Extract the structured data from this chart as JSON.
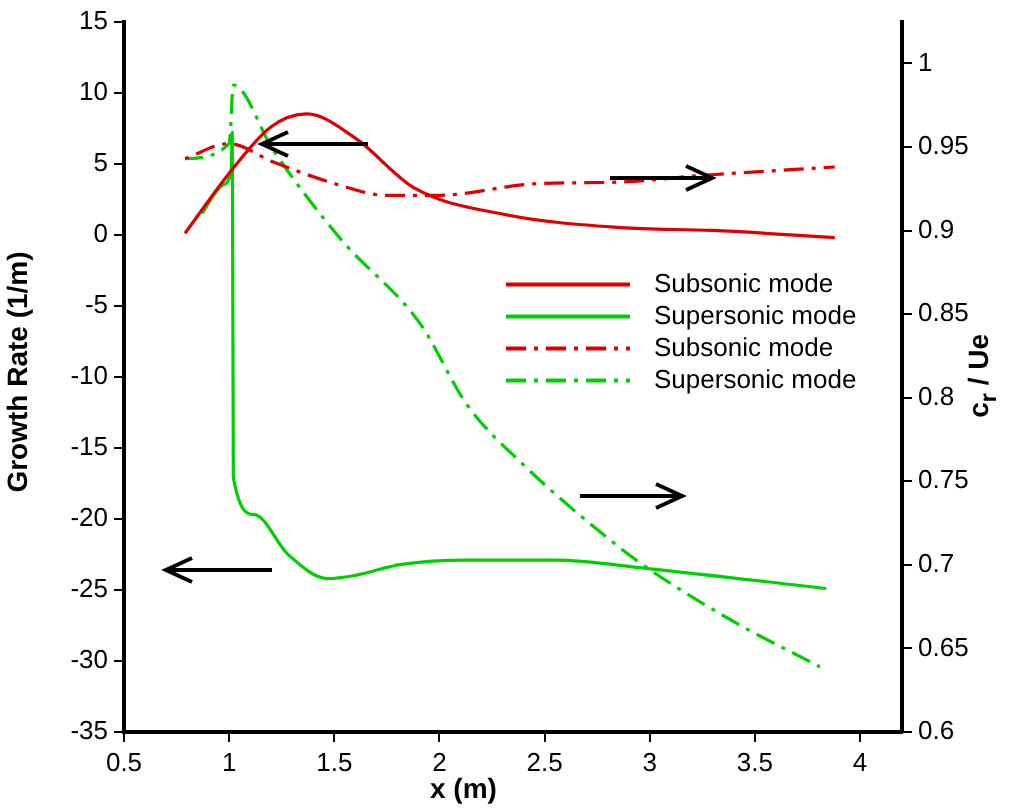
{
  "chart_data": {
    "type": "line",
    "xlabel": "x (m)",
    "ylabel": "Growth Rate (1/m)",
    "y2label": "c$_{r}$ / Ue",
    "xlim": [
      0.5,
      4.2
    ],
    "xticks": [
      0.5,
      1,
      1.5,
      2,
      2.5,
      3,
      3.5,
      4
    ],
    "ylim": [
      -35,
      15
    ],
    "yticks": [
      -35,
      -30,
      -25,
      -20,
      -15,
      -10,
      -5,
      0,
      5,
      10,
      15
    ],
    "y2lim": [
      0.6,
      1.025
    ],
    "y2ticks": [
      0.6,
      0.65,
      0.7,
      0.75,
      0.8,
      0.85,
      0.9,
      0.95,
      1
    ],
    "grid": false,
    "legend": "right",
    "marker": "none",
    "series": [
      {
        "name": "Subsonic mode",
        "color": "#e00000",
        "line_style": "solid",
        "x": [
          0.79,
          1.02,
          1.2,
          1.37,
          1.6,
          1.88,
          2.32,
          2.86,
          3.3,
          3.88
        ],
        "values": [
          0.1,
          4.7,
          7.6,
          8.5,
          6.8,
          3.3,
          1.4,
          0.5,
          0.3,
          -0.2
        ]
      },
      {
        "name": "Supersonic mode",
        "color": "#00d000",
        "line_style": "solid",
        "x": [
          0.87,
          0.97,
          1.01,
          1.015,
          1.02,
          1.12,
          1.28,
          1.47,
          1.59,
          1.82,
          2.13,
          2.55,
          2.99,
          3.84
        ],
        "values": [
          1.5,
          3.5,
          4.6,
          7.2,
          -17.1,
          -19.7,
          -22.5,
          -24.2,
          -24,
          -23.2,
          -22.9,
          -22.9,
          -23.5,
          -24.9
        ]
      },
      {
        "name": "Subsonic mode",
        "color": "#e00000",
        "line_style": "dashdot",
        "axis": "y2",
        "x": [
          0.79,
          1.0,
          1.21,
          1.53,
          1.75,
          1.98,
          2.46,
          2.86,
          3.25,
          3.88
        ],
        "values": [
          0.943,
          0.952,
          0.941,
          0.927,
          0.921,
          0.921,
          0.928,
          0.929,
          0.933,
          0.938
        ]
      },
      {
        "name": "Supersonic mode",
        "color": "#00d000",
        "line_style": "dashdot",
        "axis": "y2",
        "x": [
          0.79,
          1.0,
          1.02,
          1.21,
          1.53,
          1.91,
          2.13,
          2.39,
          2.83,
          2.99,
          3.4,
          3.81
        ],
        "values": [
          0.943,
          0.952,
          0.987,
          0.948,
          0.895,
          0.844,
          0.796,
          0.761,
          0.713,
          0.698,
          0.666,
          0.639
        ]
      }
    ]
  }
}
